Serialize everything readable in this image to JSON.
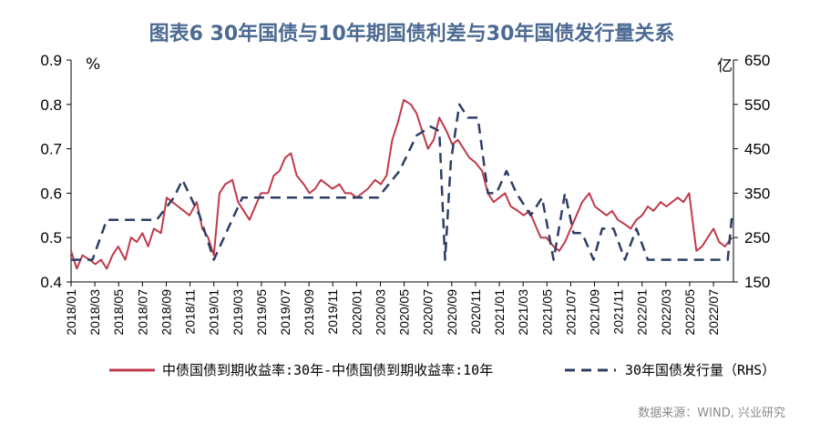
{
  "chart_data": {
    "type": "line",
    "title": "图表6  30年国债与10年期国债利差与30年国债发行量关系",
    "y_left_unit": "%",
    "y_right_unit": "亿",
    "ylim_left": [
      0.4,
      0.9
    ],
    "ylim_right": [
      150,
      650
    ],
    "yticks_left": [
      "0.4",
      "0.5",
      "0.6",
      "0.7",
      "0.8",
      "0.9"
    ],
    "yticks_right": [
      "150",
      "250",
      "350",
      "450",
      "550",
      "650"
    ],
    "x_tick_labels": [
      "2018/01",
      "2018/03",
      "2018/05",
      "2018/07",
      "2018/09",
      "2018/11",
      "2019/01",
      "2019/03",
      "2019/05",
      "2019/07",
      "2019/09",
      "2019/11",
      "2020/01",
      "2020/03",
      "2020/05",
      "2020/07",
      "2020/09",
      "2020/11",
      "2021/01",
      "2021/03",
      "2021/05",
      "2021/07",
      "2021/09",
      "2021/11",
      "2022/01",
      "2022/03",
      "2022/05",
      "2022/07"
    ],
    "x_range": [
      2018.0,
      2022.64
    ],
    "series": [
      {
        "name": "中债国债到期收益率:30年-中债国债到期收益率:10年",
        "axis": "left",
        "color": "#c0394b",
        "style": "solid",
        "x": [
          2018.0,
          2018.04,
          2018.08,
          2018.13,
          2018.17,
          2018.21,
          2018.25,
          2018.29,
          2018.33,
          2018.38,
          2018.42,
          2018.46,
          2018.5,
          2018.54,
          2018.58,
          2018.63,
          2018.67,
          2018.71,
          2018.75,
          2018.79,
          2018.83,
          2018.88,
          2018.92,
          2018.96,
          2019.0,
          2019.04,
          2019.08,
          2019.13,
          2019.17,
          2019.21,
          2019.25,
          2019.29,
          2019.33,
          2019.38,
          2019.42,
          2019.46,
          2019.5,
          2019.54,
          2019.58,
          2019.63,
          2019.67,
          2019.71,
          2019.75,
          2019.79,
          2019.83,
          2019.88,
          2019.92,
          2019.96,
          2020.0,
          2020.04,
          2020.08,
          2020.13,
          2020.17,
          2020.21,
          2020.25,
          2020.29,
          2020.33,
          2020.38,
          2020.42,
          2020.46,
          2020.5,
          2020.54,
          2020.58,
          2020.63,
          2020.67,
          2020.71,
          2020.75,
          2020.79,
          2020.83,
          2020.88,
          2020.92,
          2020.96,
          2021.0,
          2021.04,
          2021.08,
          2021.13,
          2021.17,
          2021.21,
          2021.25,
          2021.29,
          2021.33,
          2021.38,
          2021.42,
          2021.46,
          2021.5,
          2021.54,
          2021.58,
          2021.63,
          2021.67,
          2021.71,
          2021.75,
          2021.79,
          2021.83,
          2021.88,
          2021.92,
          2021.96,
          2022.0,
          2022.04,
          2022.08,
          2022.13,
          2022.17,
          2022.21,
          2022.25,
          2022.29,
          2022.33,
          2022.38,
          2022.42,
          2022.46,
          2022.5,
          2022.54,
          2022.58,
          2022.63
        ],
        "values": [
          0.47,
          0.43,
          0.46,
          0.45,
          0.44,
          0.45,
          0.43,
          0.46,
          0.48,
          0.45,
          0.5,
          0.49,
          0.51,
          0.48,
          0.52,
          0.51,
          0.59,
          0.58,
          0.57,
          0.56,
          0.55,
          0.58,
          0.52,
          0.5,
          0.46,
          0.6,
          0.62,
          0.63,
          0.58,
          0.56,
          0.54,
          0.57,
          0.6,
          0.6,
          0.64,
          0.65,
          0.68,
          0.69,
          0.64,
          0.62,
          0.6,
          0.61,
          0.63,
          0.62,
          0.61,
          0.62,
          0.6,
          0.6,
          0.59,
          0.6,
          0.61,
          0.63,
          0.62,
          0.64,
          0.72,
          0.76,
          0.81,
          0.8,
          0.78,
          0.74,
          0.7,
          0.72,
          0.77,
          0.74,
          0.71,
          0.72,
          0.7,
          0.68,
          0.67,
          0.65,
          0.6,
          0.58,
          0.59,
          0.6,
          0.57,
          0.56,
          0.55,
          0.56,
          0.53,
          0.5,
          0.5,
          0.48,
          0.47,
          0.49,
          0.52,
          0.55,
          0.58,
          0.6,
          0.57,
          0.56,
          0.55,
          0.56,
          0.54,
          0.53,
          0.52,
          0.54,
          0.55,
          0.57,
          0.56,
          0.58,
          0.57,
          0.58,
          0.59,
          0.58,
          0.6,
          0.47,
          0.48,
          0.5,
          0.52,
          0.49,
          0.48,
          0.5
        ]
      },
      {
        "name": "30年国债发行量（RHS）",
        "axis": "right",
        "color": "#2c3e64",
        "style": "dashed",
        "x": [
          2018.0,
          2018.06,
          2018.15,
          2018.25,
          2018.35,
          2018.5,
          2018.6,
          2018.72,
          2018.78,
          2018.9,
          2019.0,
          2019.1,
          2019.2,
          2019.3,
          2019.45,
          2019.6,
          2019.7,
          2019.85,
          2020.0,
          2020.15,
          2020.3,
          2020.42,
          2020.52,
          2020.58,
          2020.62,
          2020.66,
          2020.72,
          2020.78,
          2020.85,
          2020.92,
          2020.98,
          2021.05,
          2021.12,
          2021.22,
          2021.3,
          2021.38,
          2021.46,
          2021.52,
          2021.58,
          2021.66,
          2021.72,
          2021.8,
          2021.88,
          2021.96,
          2022.04,
          2022.15,
          2022.28,
          2022.42,
          2022.55,
          2022.6,
          2022.63
        ],
        "values": [
          200,
          200,
          200,
          290,
          290,
          290,
          290,
          340,
          380,
          300,
          200,
          270,
          340,
          340,
          340,
          340,
          340,
          340,
          340,
          340,
          400,
          480,
          500,
          490,
          200,
          420,
          550,
          520,
          520,
          350,
          350,
          400,
          350,
          300,
          340,
          200,
          350,
          260,
          260,
          200,
          270,
          270,
          200,
          270,
          200,
          200,
          200,
          200,
          200,
          200,
          300
        ]
      }
    ],
    "source": "数据来源：WIND, 兴业研究"
  }
}
